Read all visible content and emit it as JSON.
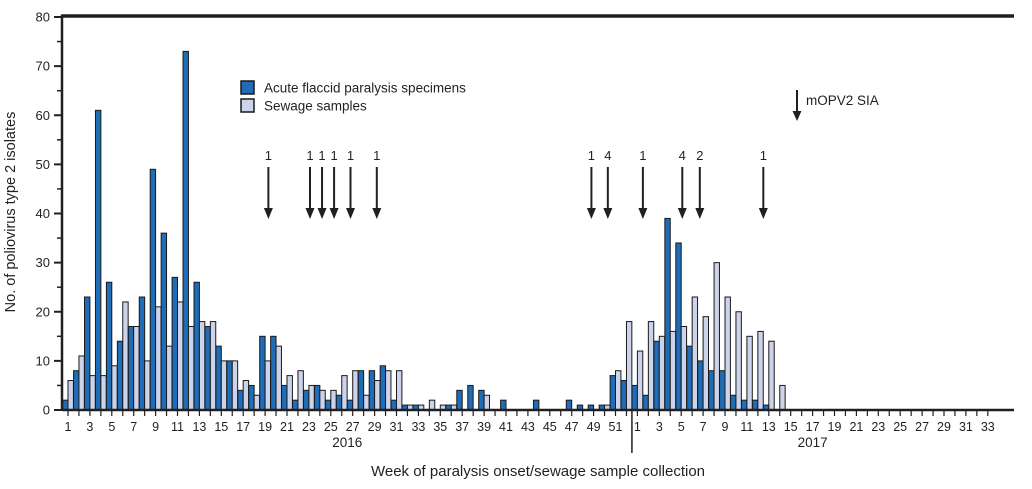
{
  "figure": {
    "y_axis_title": "No. of poliovirus type 2 isolates",
    "x_axis_title": "Week of paralysis onset/sewage sample collection",
    "colors": {
      "afp_bar": "#1f6db6",
      "sewage_bar": "#ccd3ea",
      "bar_outline": "#1a1a1a",
      "axis": "#231f20",
      "text": "#231f20"
    }
  },
  "legend": {
    "items": [
      {
        "label": "Acute flaccid paralysis specimens",
        "swatch": "afp_bar"
      },
      {
        "label": "Sewage samples",
        "swatch": "sewage_bar"
      }
    ]
  },
  "sia_annotation": {
    "label": "mOPV2 SIA"
  },
  "chart_data": {
    "type": "bar",
    "title": "",
    "xlabel": "Week of paralysis onset/sewage sample collection",
    "ylabel": "No. of poliovirus type 2 isolates",
    "ylim": [
      0,
      80
    ],
    "y_tick_interval": 10,
    "y_minor_tick_interval": 5,
    "x_tick_label_interval": 2,
    "grid": false,
    "legend_position": "inside-top-left",
    "series": [
      {
        "name": "Acute flaccid paralysis specimens",
        "key": "afp"
      },
      {
        "name": "Sewage samples",
        "key": "sewage"
      }
    ],
    "years": [
      {
        "year": "2016",
        "weeks": 52,
        "afp": [
          2,
          8,
          23,
          61,
          26,
          14,
          17,
          23,
          49,
          36,
          27,
          73,
          26,
          17,
          13,
          10,
          4,
          5,
          15,
          15,
          5,
          2,
          4,
          5,
          2,
          3,
          2,
          8,
          8,
          9,
          2,
          1,
          1,
          0,
          0,
          1,
          4,
          5,
          4,
          0,
          2,
          0,
          0,
          2,
          0,
          0,
          2,
          1,
          1,
          1,
          7,
          6
        ],
        "sewage": [
          6,
          11,
          7,
          7,
          9,
          22,
          17,
          10,
          21,
          13,
          22,
          17,
          18,
          18,
          10,
          10,
          6,
          3,
          10,
          13,
          7,
          8,
          5,
          4,
          4,
          7,
          8,
          3,
          6,
          8,
          8,
          1,
          1,
          2,
          1,
          1,
          0,
          0,
          3,
          0,
          0,
          0,
          0,
          0,
          0,
          0,
          0,
          0,
          0,
          1,
          8,
          18
        ]
      },
      {
        "year": "2017",
        "weeks": 33,
        "afp": [
          5,
          3,
          14,
          39,
          34,
          13,
          10,
          8,
          8,
          3,
          2,
          2,
          1,
          0,
          0,
          0,
          0,
          0,
          0,
          0,
          0,
          0,
          0,
          0,
          0,
          0,
          0,
          0,
          0,
          0,
          0,
          0,
          0
        ],
        "sewage": [
          12,
          18,
          15,
          16,
          17,
          23,
          19,
          30,
          23,
          20,
          15,
          16,
          14,
          5,
          0,
          0,
          0,
          0,
          0,
          0,
          0,
          0,
          0,
          0,
          0,
          0,
          0,
          0,
          0,
          0,
          0,
          0,
          0
        ]
      }
    ],
    "sia_arrows": [
      {
        "label": "1",
        "abs_week": 19.3
      },
      {
        "label": "1",
        "abs_week": 23.1
      },
      {
        "label": "1",
        "abs_week": 24.2
      },
      {
        "label": "1",
        "abs_week": 25.3
      },
      {
        "label": "1",
        "abs_week": 26.8
      },
      {
        "label": "1",
        "abs_week": 29.2
      },
      {
        "label": "1",
        "abs_week": 48.8
      },
      {
        "label": "4",
        "abs_week": 50.3
      },
      {
        "label": "1",
        "abs_week": 53.5
      },
      {
        "label": "4",
        "abs_week": 57.1
      },
      {
        "label": "2",
        "abs_week": 58.7
      },
      {
        "label": "1",
        "abs_week": 64.5
      }
    ]
  }
}
